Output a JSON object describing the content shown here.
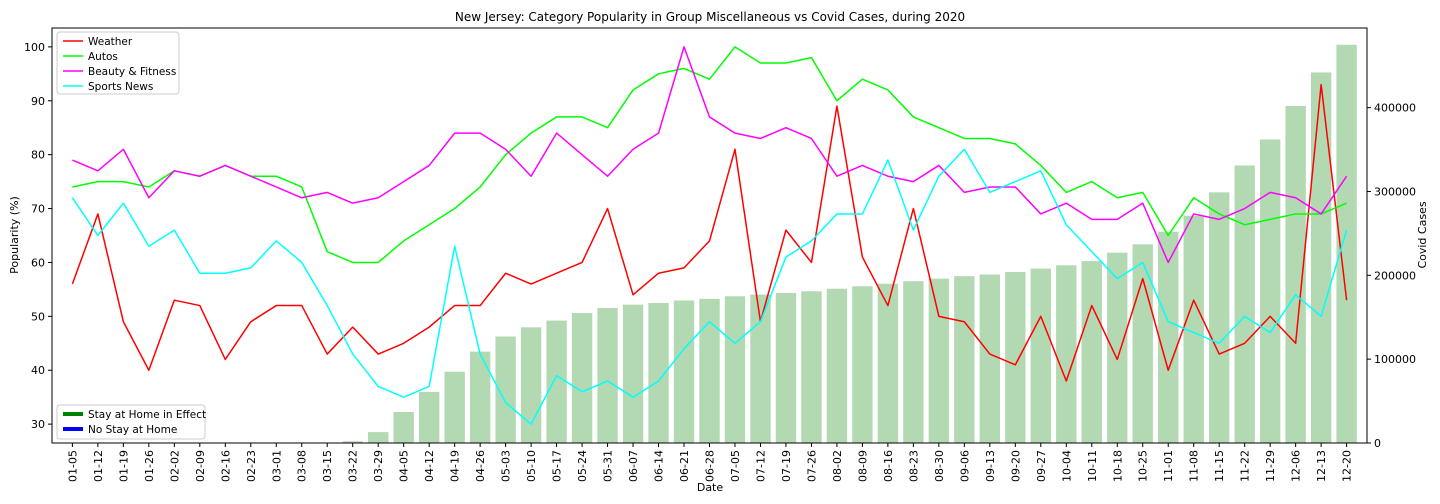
{
  "chart_data": {
    "type": "line",
    "title": "New Jersey: Category Popularity in Group Miscellaneous vs Covid Cases, during 2020",
    "xlabel": "Date",
    "ylabel": "Popularity (%)",
    "y2label": "Covid Cases",
    "ylim": [
      26.5,
      103.5
    ],
    "y2lim": [
      0,
      495000
    ],
    "yticks": [
      30,
      40,
      50,
      60,
      70,
      80,
      90,
      100
    ],
    "y2ticks": [
      0,
      100000,
      200000,
      300000,
      400000
    ],
    "categories": [
      "01-05",
      "01-12",
      "01-19",
      "01-26",
      "02-02",
      "02-09",
      "02-16",
      "02-23",
      "03-01",
      "03-08",
      "03-15",
      "03-22",
      "03-29",
      "04-05",
      "04-12",
      "04-19",
      "04-26",
      "05-03",
      "05-10",
      "05-17",
      "05-24",
      "05-31",
      "06-07",
      "06-14",
      "06-21",
      "06-28",
      "07-05",
      "07-12",
      "07-19",
      "07-26",
      "08-02",
      "08-09",
      "08-16",
      "08-23",
      "08-30",
      "09-06",
      "09-13",
      "09-20",
      "09-27",
      "10-04",
      "10-11",
      "10-18",
      "10-25",
      "11-01",
      "11-08",
      "11-15",
      "11-22",
      "11-29",
      "12-06",
      "12-13",
      "12-20"
    ],
    "series": [
      {
        "name": "Weather",
        "color": "#ff0000",
        "values": [
          56,
          69,
          49,
          40,
          53,
          52,
          42,
          49,
          52,
          52,
          43,
          48,
          43,
          45,
          48,
          52,
          52,
          58,
          56,
          58,
          60,
          70,
          54,
          58,
          59,
          64,
          81,
          49,
          66,
          60,
          89,
          61,
          52,
          70,
          50,
          49,
          43,
          41,
          50,
          38,
          52,
          42,
          57,
          40,
          53,
          43,
          45,
          50,
          45,
          93,
          53
        ]
      },
      {
        "name": "Autos",
        "color": "#00ff00",
        "values": [
          74,
          75,
          75,
          74,
          77,
          76,
          78,
          76,
          76,
          74,
          62,
          60,
          60,
          64,
          67,
          70,
          74,
          80,
          84,
          87,
          87,
          85,
          92,
          95,
          96,
          94,
          100,
          97,
          97,
          98,
          90,
          94,
          92,
          87,
          85,
          83,
          83,
          82,
          78,
          73,
          75,
          72,
          73,
          65,
          72,
          69,
          67,
          68,
          69,
          69,
          71
        ]
      },
      {
        "name": "Beauty & Fitness",
        "color": "#ff00ff",
        "values": [
          79,
          77,
          81,
          72,
          77,
          76,
          78,
          76,
          74,
          72,
          73,
          71,
          72,
          75,
          78,
          84,
          84,
          81,
          76,
          84,
          80,
          76,
          81,
          84,
          100,
          87,
          84,
          83,
          85,
          83,
          76,
          78,
          76,
          75,
          78,
          73,
          74,
          74,
          69,
          71,
          68,
          68,
          71,
          60,
          69,
          68,
          70,
          73,
          72,
          69,
          76
        ]
      },
      {
        "name": "Sports News",
        "color": "#00ffff",
        "values": [
          72,
          65,
          71,
          63,
          66,
          58,
          58,
          59,
          64,
          60,
          52,
          43,
          37,
          35,
          37,
          63,
          43,
          34,
          30,
          39,
          36,
          38,
          35,
          38,
          44,
          49,
          45,
          49,
          61,
          64,
          69,
          69,
          79,
          66,
          76,
          81,
          73,
          75,
          77,
          67,
          62,
          57,
          60,
          49,
          47,
          45,
          50,
          47,
          54,
          50,
          66
        ]
      }
    ],
    "bars": {
      "name": "Covid Cases",
      "color": "#b3d9b3",
      "values": [
        0,
        0,
        0,
        0,
        0,
        0,
        0,
        0,
        0,
        0,
        0,
        2000,
        13000,
        37000,
        61000,
        85000,
        109000,
        127000,
        138000,
        146000,
        155000,
        161000,
        165000,
        167000,
        170000,
        172000,
        175000,
        177000,
        179000,
        181000,
        184000,
        187000,
        190000,
        193000,
        196000,
        199000,
        201000,
        204000,
        208000,
        212000,
        217000,
        227000,
        237000,
        252000,
        271000,
        299000,
        331000,
        362000,
        402000,
        442000,
        475000
      ]
    },
    "legend": {
      "placement": "top-left",
      "policy_placement": "bottom-left",
      "policy_items": [
        {
          "label": "Stay at Home in Effect",
          "color": "#008000"
        },
        {
          "label": "No Stay at Home",
          "color": "#0000ff"
        }
      ]
    },
    "grid": false
  }
}
